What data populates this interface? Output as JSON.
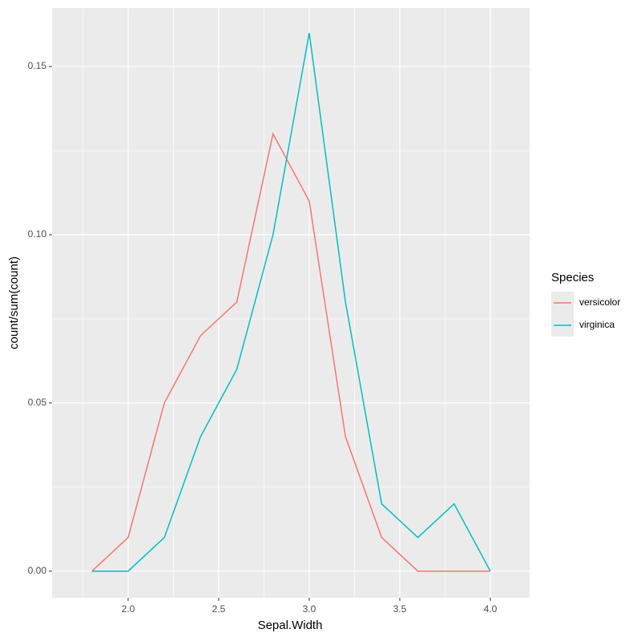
{
  "chart_data": {
    "type": "line",
    "x_label": "Sepal.Width",
    "y_label": "count/sum(count)",
    "x": [
      1.8,
      2.0,
      2.2,
      2.4,
      2.6,
      2.8,
      3.0,
      3.2,
      3.4,
      3.6,
      3.8,
      4.0
    ],
    "series": [
      {
        "name": "versicolor",
        "color": "#f8766d",
        "values": [
          0,
          0.01,
          0.05,
          0.07,
          0.08,
          0.13,
          0.11,
          0.04,
          0.01,
          0,
          0,
          0
        ]
      },
      {
        "name": "virginica",
        "color": "#00bfc4",
        "values": [
          0,
          0,
          0.01,
          0.04,
          0.06,
          0.1,
          0.16,
          0.08,
          0.02,
          0.01,
          0.02,
          0
        ]
      }
    ],
    "xlim": [
      1.58,
      4.217
    ],
    "ylim": [
      -0.0079,
      0.1674
    ],
    "xticks": [
      {
        "value": 2.0,
        "label": "2.0"
      },
      {
        "value": 2.5,
        "label": "2.5"
      },
      {
        "value": 3.0,
        "label": "3.0"
      },
      {
        "value": 3.5,
        "label": "3.5"
      },
      {
        "value": 4.0,
        "label": "4.0"
      }
    ],
    "yticks": [
      {
        "value": 0,
        "label": "0.00"
      },
      {
        "value": 0.05,
        "label": "0.05"
      },
      {
        "value": 0.1,
        "label": "0.10"
      },
      {
        "value": 0.15,
        "label": "0.15"
      }
    ],
    "grid": true,
    "minor_grid": true,
    "legend_title": "Species",
    "legend_position": "right"
  }
}
